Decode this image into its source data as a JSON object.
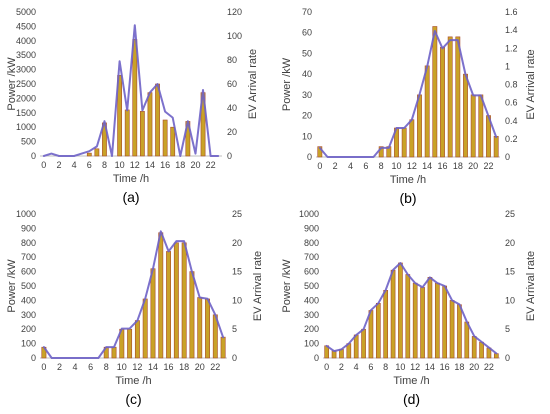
{
  "style": {
    "bar_color": "#C9A227",
    "bar_edge_color": "#A84A2A",
    "line_color": "#6E62C7",
    "axis_color": "#BFBFBF",
    "text_color": "#404040"
  },
  "chart_data": [
    {
      "panel": "(a)",
      "type": "bar+line",
      "xlabel": "Time /h",
      "ylabel": "Power /kW",
      "y2label": "EV Arrival rate",
      "x_ticks": [
        "0",
        "2",
        "4",
        "6",
        "8",
        "10",
        "12",
        "14",
        "16",
        "18",
        "20",
        "22"
      ],
      "y_ticks": [
        "0",
        "500",
        "1000",
        "1500",
        "2000",
        "2500",
        "3000",
        "3500",
        "4000",
        "4500",
        "5000"
      ],
      "y2_ticks": [
        "0",
        "20",
        "40",
        "60",
        "80",
        "100",
        "120"
      ],
      "ylim": [
        0,
        5000
      ],
      "y2lim": [
        0,
        120
      ],
      "x": [
        0,
        1,
        2,
        3,
        4,
        5,
        6,
        7,
        8,
        9,
        10,
        11,
        12,
        13,
        14,
        15,
        16,
        17,
        18,
        19,
        20,
        21,
        22,
        23
      ],
      "bars_power_kw": [
        0,
        0,
        0,
        0,
        0,
        0,
        100,
        250,
        1150,
        0,
        2800,
        1600,
        4050,
        1550,
        2200,
        2500,
        1250,
        1000,
        0,
        1200,
        0,
        2200,
        0,
        0
      ],
      "line_ev_arrival_rate": [
        0,
        2,
        0,
        0,
        0,
        2,
        4,
        8,
        29,
        0,
        79,
        38,
        109,
        38,
        53,
        60,
        37,
        32,
        0,
        29,
        2,
        55,
        0,
        0
      ]
    },
    {
      "panel": "(b)",
      "type": "bar+line",
      "xlabel": "Time /h",
      "ylabel": "Power /kW",
      "y2label": "EV Arrival rate",
      "x_ticks": [
        "0",
        "2",
        "4",
        "6",
        "8",
        "10",
        "12",
        "14",
        "16",
        "18",
        "20",
        "22"
      ],
      "y_ticks": [
        "0",
        "10",
        "20",
        "30",
        "40",
        "50",
        "60",
        "70"
      ],
      "y2_ticks": [
        "0",
        "0.2",
        "0.4",
        "0.6",
        "0.8",
        "1",
        "1.2",
        "1.4",
        "1.6"
      ],
      "ylim": [
        0,
        70
      ],
      "y2lim": [
        0,
        1.6
      ],
      "x": [
        0,
        1,
        2,
        3,
        4,
        5,
        6,
        7,
        8,
        9,
        10,
        11,
        12,
        13,
        14,
        15,
        16,
        17,
        18,
        19,
        20,
        21,
        22,
        23
      ],
      "bars_power_kw": [
        5,
        0,
        0,
        0,
        0,
        0,
        0,
        0,
        5,
        5,
        14,
        14,
        18,
        30,
        44,
        63,
        53,
        58,
        58,
        40,
        30,
        30,
        20,
        10
      ],
      "line_ev_arrival_rate": [
        0.1,
        0,
        0,
        0,
        0,
        0,
        0,
        0,
        0.1,
        0.1,
        0.32,
        0.32,
        0.41,
        0.69,
        1.0,
        1.39,
        1.2,
        1.29,
        1.29,
        0.91,
        0.68,
        0.68,
        0.45,
        0.22
      ]
    },
    {
      "panel": "(c)",
      "type": "bar+line",
      "xlabel": "Time /h",
      "ylabel": "Power /kW",
      "y2label": "EV Arrival rate",
      "x_ticks": [
        "0",
        "2",
        "4",
        "6",
        "8",
        "10",
        "12",
        "14",
        "16",
        "18",
        "20",
        "22"
      ],
      "y_ticks": [
        "0",
        "100",
        "200",
        "300",
        "400",
        "500",
        "600",
        "700",
        "800",
        "900",
        "1000"
      ],
      "y2_ticks": [
        "0",
        "5",
        "10",
        "15",
        "20",
        "25"
      ],
      "ylim": [
        0,
        1000
      ],
      "y2lim": [
        0,
        25
      ],
      "x": [
        0,
        1,
        2,
        3,
        4,
        5,
        6,
        7,
        8,
        9,
        10,
        11,
        12,
        13,
        14,
        15,
        16,
        17,
        18,
        19,
        20,
        21,
        22,
        23
      ],
      "bars_power_kw": [
        75,
        0,
        0,
        0,
        0,
        0,
        0,
        0,
        75,
        75,
        200,
        200,
        260,
        410,
        620,
        870,
        740,
        800,
        800,
        600,
        420,
        410,
        300,
        145
      ],
      "line_ev_arrival_rate": [
        1.9,
        0,
        0,
        0,
        0,
        0,
        0,
        0,
        1.9,
        1.9,
        5.1,
        5.1,
        6.5,
        10.3,
        15.5,
        22,
        18.5,
        20.3,
        20.3,
        15,
        10.5,
        10.3,
        7.5,
        3.6
      ]
    },
    {
      "panel": "(d)",
      "type": "bar+line",
      "xlabel": "Time /h",
      "ylabel": "Power /kW",
      "y2label": "EV Arrival rate",
      "x_ticks": [
        "0",
        "2",
        "4",
        "6",
        "8",
        "10",
        "12",
        "14",
        "16",
        "18",
        "20",
        "22"
      ],
      "y_ticks": [
        "0",
        "100",
        "200",
        "300",
        "400",
        "500",
        "600",
        "700",
        "800",
        "900",
        "1000"
      ],
      "y2_ticks": [
        "0",
        "5",
        "10",
        "15",
        "20",
        "25"
      ],
      "ylim": [
        0,
        1000
      ],
      "y2lim": [
        0,
        25
      ],
      "x": [
        0,
        1,
        2,
        3,
        4,
        5,
        6,
        7,
        8,
        9,
        10,
        11,
        12,
        13,
        14,
        15,
        16,
        17,
        18,
        19,
        20,
        21,
        22,
        23
      ],
      "bars_power_kw": [
        85,
        50,
        60,
        100,
        160,
        200,
        330,
        380,
        470,
        610,
        660,
        580,
        520,
        490,
        560,
        520,
        500,
        400,
        370,
        250,
        150,
        110,
        70,
        30
      ],
      "line_ev_arrival_rate": [
        2.1,
        1.2,
        1.5,
        2.5,
        4,
        5,
        8.3,
        9.5,
        11.8,
        15.3,
        16.5,
        14.5,
        13,
        12.3,
        14,
        13,
        12.5,
        10,
        9.3,
        6.3,
        3.8,
        2.8,
        1.8,
        0.8
      ]
    }
  ]
}
